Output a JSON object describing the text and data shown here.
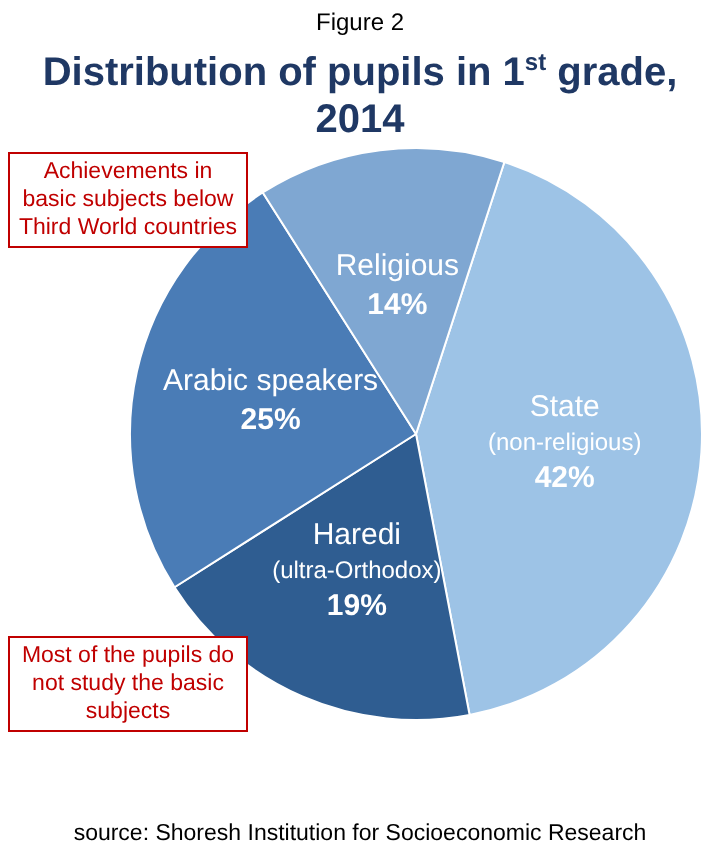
{
  "chart_data": {
    "type": "pie",
    "subtitle": "Figure 2",
    "title": "Distribution of pupils in 1$^{st}$ grade, 2014",
    "categories": [
      "State (non-religious)",
      "Haredi (ultra-Orthodox)",
      "Arabic speakers",
      "Religious"
    ],
    "values": [
      42,
      19,
      25,
      14
    ],
    "value_labels": [
      "42%",
      "19%",
      "25%",
      "14%"
    ],
    "colors": [
      "#9dc3e6",
      "#2f5d91",
      "#4a7cb6",
      "#7fa7d2"
    ],
    "legend": false,
    "annotations": [
      "Achievements in basic subjects below Third World countries",
      "Most of the pupils do not study the basic subjects",
      "source: Shoresh Institution for Socioeconomic Research"
    ]
  }
}
